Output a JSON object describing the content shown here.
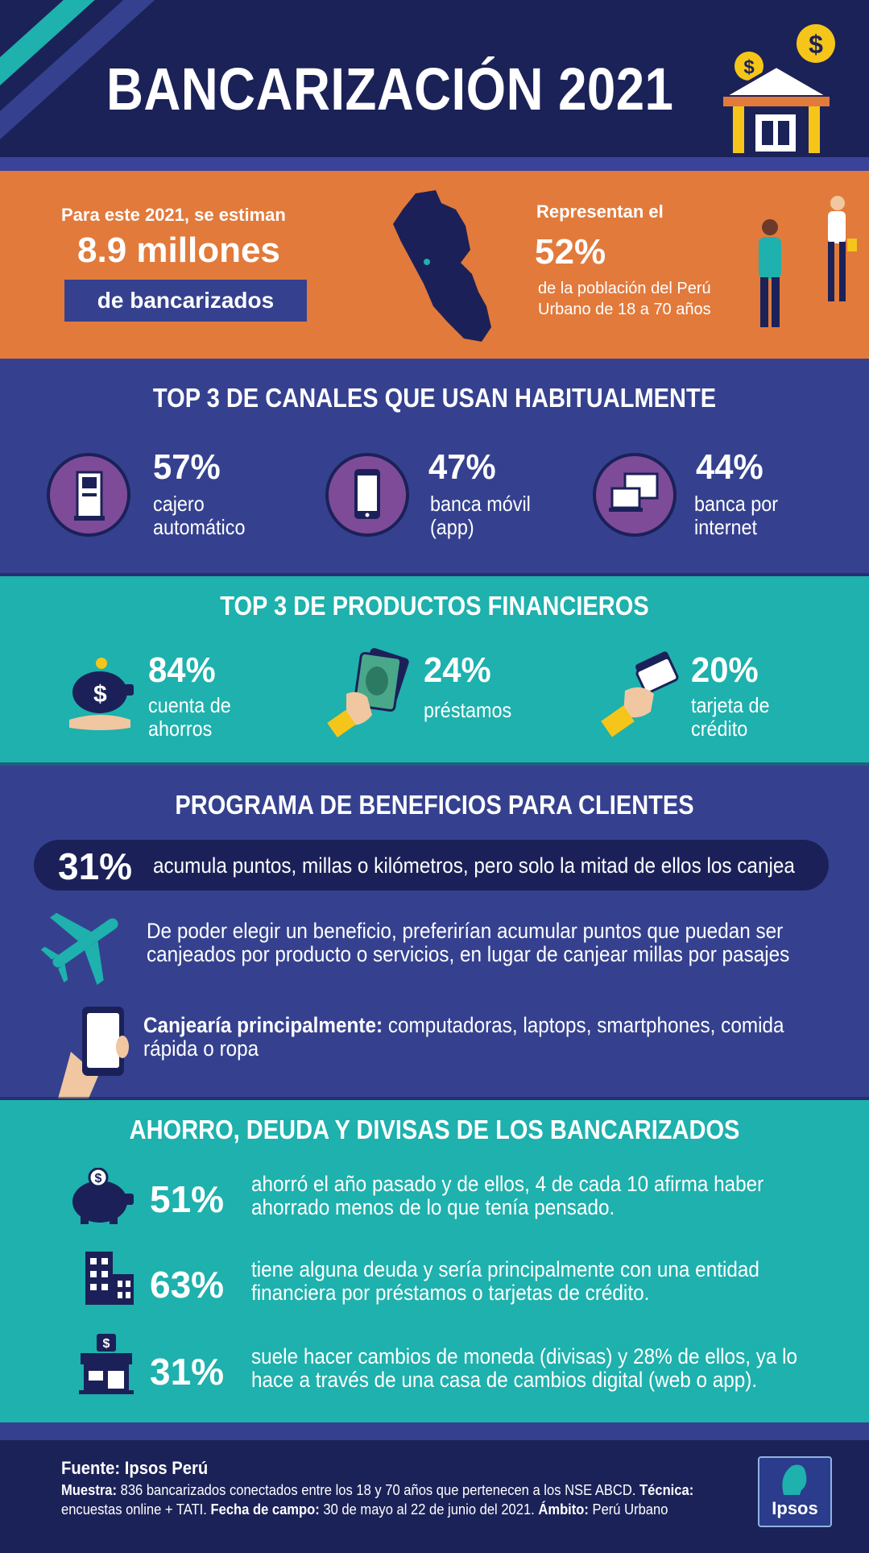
{
  "header": {
    "title": "BANCARIZACIÓN 2021"
  },
  "orange": {
    "estimate_intro": "Para este 2021, se estiman",
    "estimate_value": "8.9 millones",
    "estimate_box": "de bancarizados",
    "represent_intro": "Representan el",
    "represent_value": "52%",
    "represent_desc_1": "de la población del Perú",
    "represent_desc_2": "Urbano de 18 a 70 años"
  },
  "canales": {
    "title": "TOP 3 DE CANALES QUE USAN HABITUALMENTE",
    "items": [
      {
        "pct": "57%",
        "line1": "cajero",
        "line2": "automático",
        "icon": "atm-icon"
      },
      {
        "pct": "47%",
        "line1": "banca móvil",
        "line2": "(app)",
        "icon": "smartphone-icon"
      },
      {
        "pct": "44%",
        "line1": "banca por",
        "line2": "internet",
        "icon": "computer-icon"
      }
    ]
  },
  "productos": {
    "title": "TOP 3 DE PRODUCTOS FINANCIEROS",
    "items": [
      {
        "pct": "84%",
        "line1": "cuenta de",
        "line2": "ahorros",
        "icon": "piggy-bank-hand-icon"
      },
      {
        "pct": "24%",
        "line1": "préstamos",
        "line2": "",
        "icon": "hand-cash-icon"
      },
      {
        "pct": "20%",
        "line1": "tarjeta de",
        "line2": "crédito",
        "icon": "hand-card-icon"
      }
    ]
  },
  "beneficios": {
    "title": "PROGRAMA DE BENEFICIOS PARA CLIENTES",
    "pill_pct": "31%",
    "pill_text": "acumula puntos, millas o kilómetros, pero solo la mitad de ellos los canjea",
    "plane_text_1": "De poder elegir un beneficio, preferirían acumular puntos que puedan ser",
    "plane_text_2": "canjeados por producto o servicios, en lugar de canjear millas por pasajes",
    "phone_bold": "Canjearía principalmente:",
    "phone_text_1": " computadoras, laptops, smartphones, comida",
    "phone_text_2": "rápida o ropa"
  },
  "ahorro": {
    "title": "AHORRO, DEUDA Y DIVISAS DE LOS BANCARIZADOS",
    "items": [
      {
        "pct": "51%",
        "line1": "ahorró el año pasado y de ellos, 4 de cada 10 afirma haber",
        "line2": "ahorrado menos de lo que tenía pensado.",
        "icon": "piggy-bank-icon"
      },
      {
        "pct": "63%",
        "line1": "tiene alguna deuda y sería principalmente con una entidad",
        "line2": "financiera por préstamos o tarjetas de crédito.",
        "icon": "building-icon"
      },
      {
        "pct": "31%",
        "line1": "suele hacer cambios de moneda (divisas) y 28% de ellos, ya lo",
        "line2": "hace a través de una casa de cambios digital (web o app).",
        "icon": "exchange-store-icon"
      }
    ]
  },
  "footer": {
    "fuente": "Fuente: Ipsos Perú",
    "muestra_label": "Muestra:",
    "muestra_text": " 836 bancarizados conectados entre los 18 y 70 años que pertenecen a los NSE ABCD. ",
    "tecnica_label": "Técnica:",
    "tecnica_text": "encuestas online + TATI. ",
    "fecha_label": "Fecha de campo:",
    "fecha_text": " 30 de mayo al 22 de junio del 2021. ",
    "ambito_label": "Ámbito:",
    "ambito_text": " Perú Urbano",
    "logo": "Ipsos"
  },
  "colors": {
    "navy": "#1b2258",
    "blue": "#35418f",
    "orange": "#e27a3c",
    "teal": "#1eb1ad",
    "purple": "#7e4b99",
    "yellow": "#f6c519"
  }
}
